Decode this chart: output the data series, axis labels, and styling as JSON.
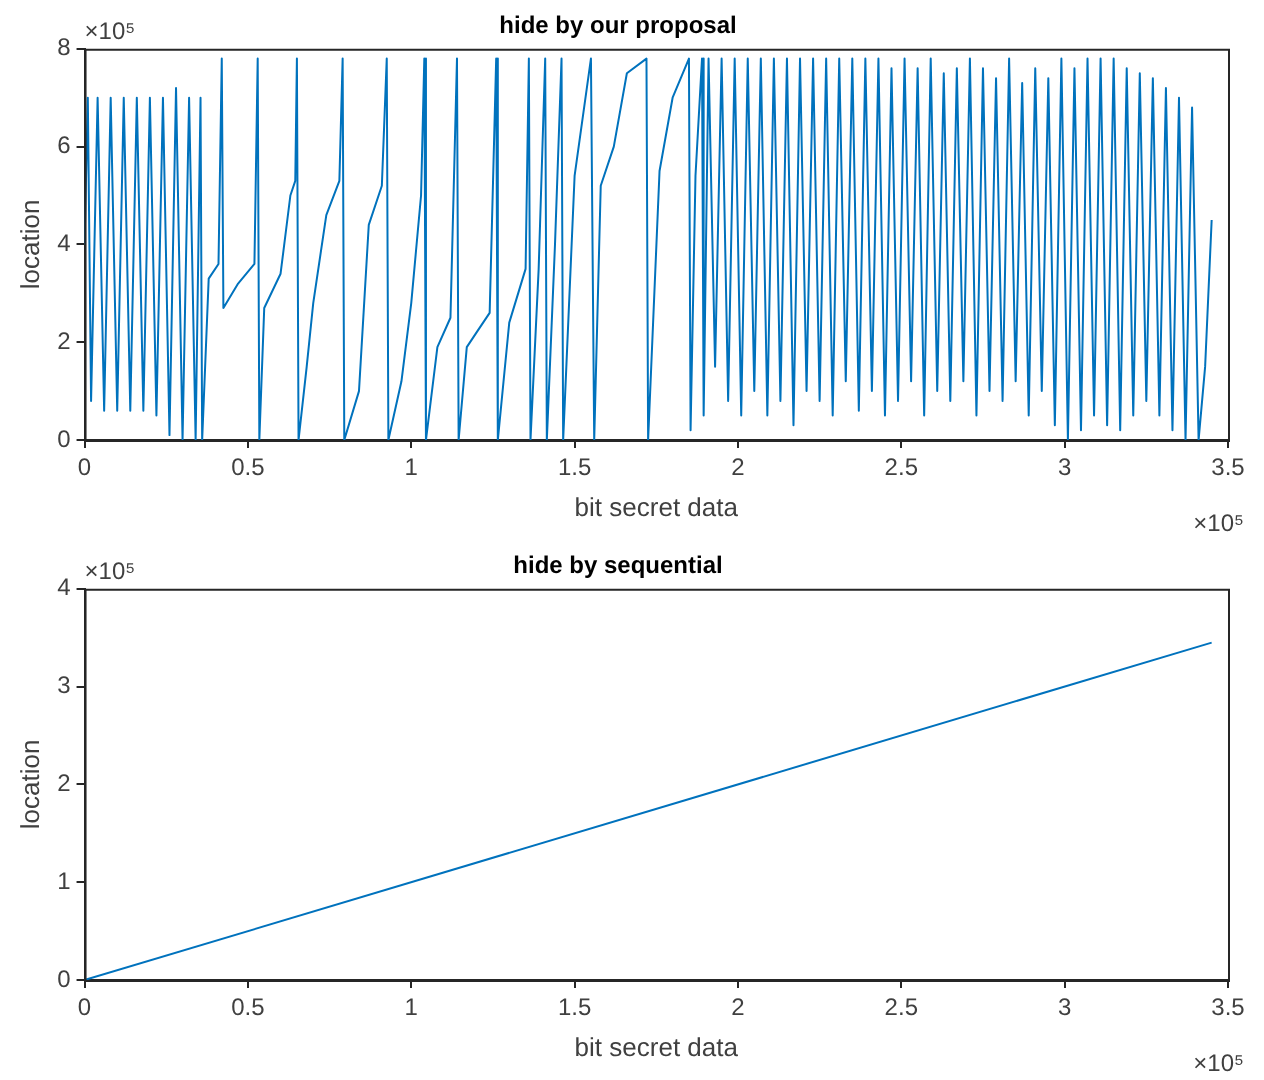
{
  "chart_data": [
    {
      "type": "line",
      "title": "hide by our proposal",
      "xlabel": "bit secret data",
      "ylabel": "location",
      "xlim": [
        0,
        3.5
      ],
      "xticks": [
        0,
        0.5,
        1,
        1.5,
        2,
        2.5,
        3,
        3.5
      ],
      "ylim": [
        0,
        8
      ],
      "yticks": [
        0,
        2,
        4,
        6,
        8
      ],
      "annotations": [
        "×10⁵",
        "×10⁵"
      ],
      "series": [
        {
          "color": "#0072bd",
          "x": [
            0,
            0.01,
            0.02,
            0.04,
            0.06,
            0.08,
            0.1,
            0.12,
            0.14,
            0.16,
            0.18,
            0.2,
            0.22,
            0.24,
            0.26,
            0.28,
            0.3,
            0.32,
            0.34,
            0.355,
            0.36,
            0.38,
            0.41,
            0.42,
            0.425,
            0.47,
            0.52,
            0.53,
            0.535,
            0.55,
            0.6,
            0.63,
            0.645,
            0.65,
            0.655,
            0.68,
            0.7,
            0.74,
            0.78,
            0.79,
            0.795,
            0.84,
            0.87,
            0.91,
            0.925,
            0.93,
            0.97,
            1.0,
            1.03,
            1.04,
            1.045,
            1.08,
            1.12,
            1.14,
            1.145,
            1.17,
            1.2,
            1.24,
            1.26,
            1.265,
            1.3,
            1.35,
            1.36,
            1.365,
            1.39,
            1.41,
            1.415,
            1.44,
            1.46,
            1.465,
            1.5,
            1.55,
            1.56,
            1.58,
            1.62,
            1.66,
            1.72,
            1.725,
            1.76,
            1.8,
            1.85,
            1.855,
            1.87,
            1.89,
            1.895,
            1.91,
            1.93,
            1.95,
            1.97,
            1.99,
            2.01,
            2.03,
            2.05,
            2.07,
            2.09,
            2.11,
            2.13,
            2.15,
            2.17,
            2.19,
            2.21,
            2.23,
            2.25,
            2.27,
            2.29,
            2.31,
            2.33,
            2.35,
            2.37,
            2.39,
            2.41,
            2.43,
            2.45,
            2.47,
            2.49,
            2.51,
            2.53,
            2.55,
            2.57,
            2.59,
            2.61,
            2.63,
            2.65,
            2.67,
            2.69,
            2.71,
            2.73,
            2.75,
            2.77,
            2.79,
            2.81,
            2.83,
            2.85,
            2.87,
            2.89,
            2.91,
            2.93,
            2.95,
            2.97,
            2.99,
            3.01,
            3.03,
            3.05,
            3.07,
            3.09,
            3.11,
            3.13,
            3.15,
            3.17,
            3.19,
            3.21,
            3.23,
            3.25,
            3.27,
            3.29,
            3.31,
            3.33,
            3.35,
            3.37,
            3.39,
            3.41,
            3.43,
            3.45
          ],
          "values": [
            4.0,
            7.0,
            0.8,
            7.0,
            0.6,
            7.0,
            0.6,
            7.0,
            0.6,
            7.0,
            0.6,
            7.0,
            0.5,
            7.0,
            0.1,
            7.2,
            0.0,
            7.0,
            0.0,
            7.0,
            0.0,
            3.3,
            3.6,
            7.8,
            2.7,
            3.2,
            3.6,
            7.8,
            0.0,
            2.7,
            3.4,
            5.0,
            5.3,
            7.8,
            0.0,
            1.5,
            2.8,
            4.6,
            5.3,
            7.8,
            0.0,
            1.0,
            4.4,
            5.2,
            7.8,
            0.0,
            1.2,
            2.8,
            5.0,
            7.8,
            0.0,
            1.9,
            2.5,
            7.8,
            0.0,
            1.9,
            2.2,
            2.6,
            7.8,
            0.0,
            2.4,
            3.5,
            7.8,
            0.0,
            3.5,
            7.8,
            0.0,
            4.0,
            7.8,
            0.0,
            5.4,
            7.8,
            0.0,
            5.2,
            6.0,
            7.5,
            7.8,
            0.0,
            5.5,
            7.0,
            7.8,
            0.2,
            5.4,
            7.8,
            0.5,
            7.8,
            1.5,
            7.8,
            0.8,
            7.8,
            0.5,
            7.8,
            1.0,
            7.8,
            0.5,
            7.8,
            0.8,
            7.8,
            0.3,
            7.8,
            1.0,
            7.8,
            0.8,
            7.8,
            0.5,
            7.8,
            1.2,
            7.8,
            0.6,
            7.8,
            1.0,
            7.8,
            0.5,
            7.6,
            0.8,
            7.8,
            1.2,
            7.6,
            0.5,
            7.8,
            1.0,
            7.5,
            0.8,
            7.6,
            1.2,
            7.8,
            0.5,
            7.6,
            1.0,
            7.4,
            0.8,
            7.8,
            1.2,
            7.3,
            0.5,
            7.6,
            1.0,
            7.4,
            0.3,
            7.8,
            0.0,
            7.6,
            0.2,
            7.8,
            0.5,
            7.8,
            0.3,
            7.8,
            0.2,
            7.6,
            0.5,
            7.5,
            0.8,
            7.4,
            0.5,
            7.2,
            0.2,
            7.0,
            0.0,
            6.8,
            0.0,
            1.5,
            4.5
          ]
        }
      ]
    },
    {
      "type": "line",
      "title": "hide by sequential",
      "xlabel": "bit secret data",
      "ylabel": "location",
      "xlim": [
        0,
        3.5
      ],
      "xticks": [
        0,
        0.5,
        1,
        1.5,
        2,
        2.5,
        3,
        3.5
      ],
      "ylim": [
        0,
        4
      ],
      "yticks": [
        0,
        1,
        2,
        3,
        4
      ],
      "annotations": [
        "×10⁵",
        "×10⁵"
      ],
      "series": [
        {
          "color": "#0072bd",
          "x": [
            0,
            3.45
          ],
          "values": [
            0,
            3.45
          ]
        }
      ]
    }
  ]
}
